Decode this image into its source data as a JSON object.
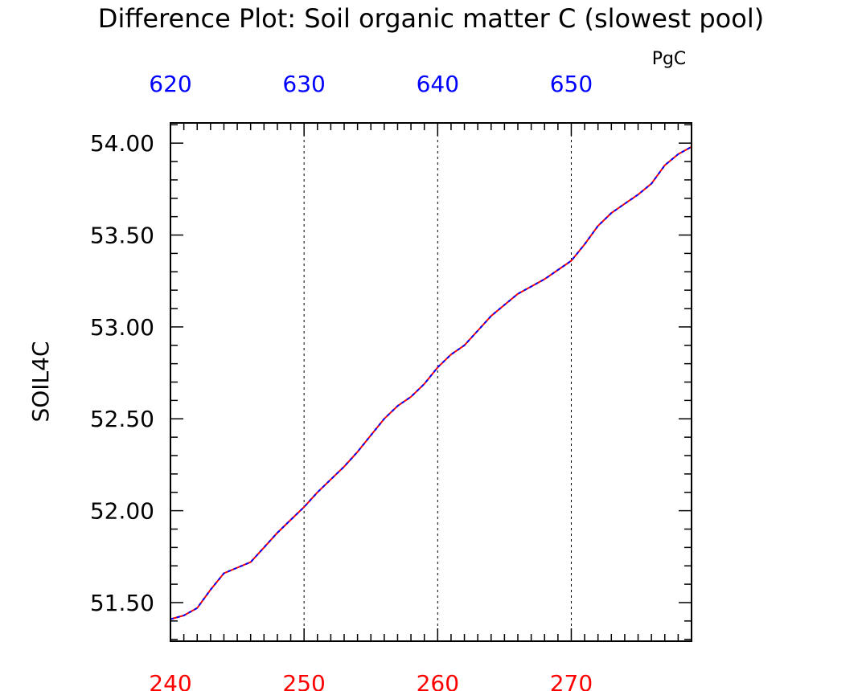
{
  "chart_data": {
    "type": "line",
    "title": "Difference Plot: Soil organic matter C (slowest pool)",
    "units": "PgC",
    "ylabel": "SOIL4C",
    "xlabel": "",
    "bottom_axis": {
      "color": "#ff0000",
      "range": [
        240,
        279
      ],
      "ticks": [
        240,
        250,
        260,
        270
      ],
      "tick_labels": [
        "240",
        "250",
        "260",
        "270"
      ]
    },
    "top_axis": {
      "color": "#0000ff",
      "range": [
        620,
        659
      ],
      "ticks": [
        620,
        630,
        640,
        650
      ],
      "tick_labels": [
        "620",
        "630",
        "640",
        "650"
      ]
    },
    "y_axis": {
      "range": [
        51.29,
        54.11
      ],
      "ticks": [
        51.5,
        52.0,
        52.5,
        53.0,
        53.5,
        54.0
      ],
      "tick_labels": [
        "51.50",
        "52.00",
        "52.50",
        "53.00",
        "53.50",
        "54.00"
      ]
    },
    "grid": "vertical dashed lines at major x ticks",
    "series": [
      {
        "color": "#ff0000",
        "style": "solid",
        "x": [
          240,
          241,
          242,
          243,
          244,
          245,
          246,
          247,
          248,
          249,
          250,
          251,
          252,
          253,
          254,
          255,
          256,
          257,
          258,
          259,
          260,
          261,
          262,
          263,
          264,
          265,
          266,
          267,
          268,
          269,
          270,
          271,
          272,
          273,
          274,
          275,
          276,
          277,
          278,
          279
        ],
        "values": [
          51.41,
          51.43,
          51.47,
          51.57,
          51.66,
          51.69,
          51.72,
          51.8,
          51.88,
          51.95,
          52.02,
          52.1,
          52.17,
          52.24,
          52.32,
          52.41,
          52.5,
          52.57,
          52.62,
          52.69,
          52.78,
          52.85,
          52.9,
          52.98,
          53.06,
          53.12,
          53.18,
          53.22,
          53.26,
          53.31,
          53.36,
          53.45,
          53.55,
          53.62,
          53.67,
          53.72,
          53.78,
          53.88,
          53.94,
          53.98
        ]
      },
      {
        "color": "#0000ff",
        "style": "dashed",
        "x": [
          620,
          621,
          622,
          623,
          624,
          625,
          626,
          627,
          628,
          629,
          630,
          631,
          632,
          633,
          634,
          635,
          636,
          637,
          638,
          639,
          640,
          641,
          642,
          643,
          644,
          645,
          646,
          647,
          648,
          649,
          650,
          651,
          652,
          653,
          654,
          655,
          656,
          657,
          658,
          659
        ],
        "values": [
          51.41,
          51.43,
          51.47,
          51.57,
          51.66,
          51.69,
          51.72,
          51.8,
          51.88,
          51.95,
          52.02,
          52.1,
          52.17,
          52.24,
          52.32,
          52.41,
          52.5,
          52.57,
          52.62,
          52.69,
          52.78,
          52.85,
          52.9,
          52.98,
          53.06,
          53.12,
          53.18,
          53.22,
          53.26,
          53.31,
          53.36,
          53.45,
          53.55,
          53.62,
          53.67,
          53.72,
          53.78,
          53.88,
          53.94,
          53.98
        ]
      }
    ]
  }
}
